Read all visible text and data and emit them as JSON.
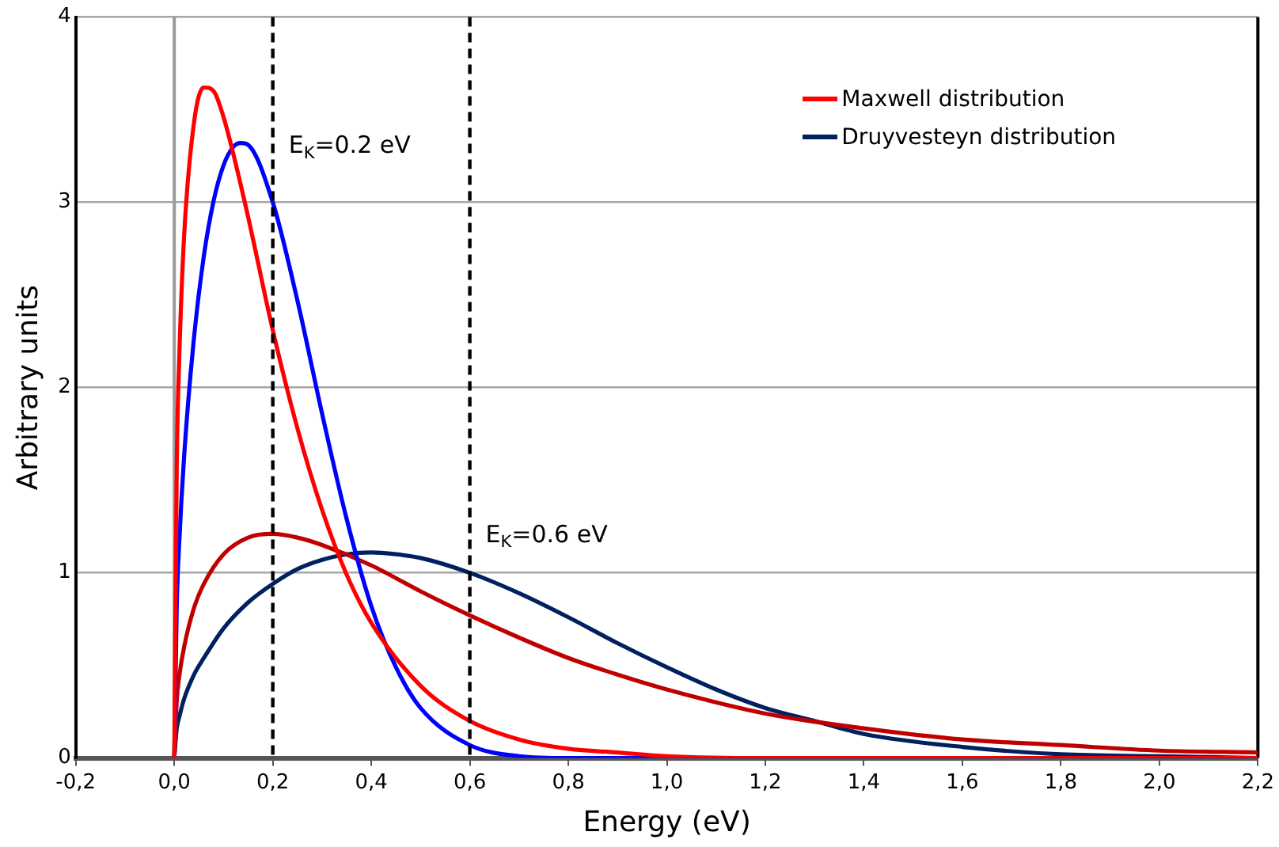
{
  "chart_data": {
    "type": "line",
    "xlabel": "Energy (eV)",
    "ylabel": "Arbitrary units",
    "xlim": [
      -0.2,
      2.2
    ],
    "xticks": [
      {
        "value": -0.2,
        "label": "-0,2"
      },
      {
        "value": 0,
        "label": "0,0"
      },
      {
        "value": 0.2,
        "label": "0,2"
      },
      {
        "value": 0.4,
        "label": "0,4"
      },
      {
        "value": 0.6,
        "label": "0,6"
      },
      {
        "value": 0.8,
        "label": "0,8"
      },
      {
        "value": 1,
        "label": "1,0"
      },
      {
        "value": 1.2,
        "label": "1,2"
      },
      {
        "value": 1.4,
        "label": "1,4"
      },
      {
        "value": 1.6,
        "label": "1,6"
      },
      {
        "value": 1.8,
        "label": "1,8"
      },
      {
        "value": 2,
        "label": "2,0"
      },
      {
        "value": 2.2,
        "label": "2,2"
      }
    ],
    "ylim": [
      0,
      4
    ],
    "yticks": [
      0,
      1,
      2,
      3,
      4
    ],
    "grid": "y",
    "legend": "top right",
    "marker": "none",
    "line_style": "solid",
    "series": [
      {
        "name": "Maxwell distribution",
        "color": "#ff0000",
        "x": [
          0,
          0.005,
          0.01,
          0.02,
          0.04,
          0.06,
          0.08,
          0.1,
          0.12,
          0.15,
          0.2,
          0.25,
          0.3,
          0.35,
          0.4,
          0.5,
          0.6,
          0.7,
          0.8,
          0.9,
          1.0,
          1.2,
          1.4,
          1.6,
          2.2
        ],
        "values": [
          0,
          1.58,
          2.15,
          2.82,
          3.43,
          3.62,
          3.6,
          3.46,
          3.26,
          2.92,
          2.31,
          1.78,
          1.34,
          0.99,
          0.73,
          0.39,
          0.2,
          0.1,
          0.05,
          0.03,
          0.01,
          0,
          0,
          0,
          0
        ]
      },
      {
        "color": "#0000ff",
        "x": [
          0,
          0.005,
          0.01,
          0.02,
          0.04,
          0.06,
          0.08,
          0.1,
          0.12,
          0.135,
          0.15,
          0.2,
          0.25,
          0.3,
          0.35,
          0.4,
          0.45,
          0.5,
          0.6,
          0.7,
          0.8,
          1.0,
          2.2
        ],
        "values": [
          0,
          0.82,
          1.16,
          1.63,
          2.27,
          2.71,
          3.01,
          3.2,
          3.3,
          3.32,
          3.31,
          3.0,
          2.47,
          1.86,
          1.29,
          0.82,
          0.49,
          0.27,
          0.07,
          0.01,
          0,
          0,
          0
        ]
      },
      {
        "color": "#c00000",
        "x": [
          0,
          0.005,
          0.01,
          0.02,
          0.04,
          0.06,
          0.1,
          0.15,
          0.2,
          0.25,
          0.3,
          0.4,
          0.5,
          0.6,
          0.7,
          0.8,
          0.9,
          1.0,
          1.2,
          1.4,
          1.6,
          1.8,
          2.0,
          2.2
        ],
        "values": [
          0,
          0.31,
          0.44,
          0.6,
          0.81,
          0.94,
          1.1,
          1.19,
          1.21,
          1.19,
          1.15,
          1.04,
          0.9,
          0.77,
          0.65,
          0.54,
          0.45,
          0.37,
          0.24,
          0.16,
          0.1,
          0.07,
          0.04,
          0.03
        ]
      },
      {
        "name": "Druyvesteyn distribution",
        "color": "#002060",
        "x": [
          0,
          0.005,
          0.01,
          0.02,
          0.04,
          0.06,
          0.1,
          0.15,
          0.2,
          0.25,
          0.3,
          0.35,
          0.4,
          0.45,
          0.5,
          0.6,
          0.7,
          0.8,
          0.9,
          1.0,
          1.1,
          1.2,
          1.3,
          1.4,
          1.6,
          1.8,
          2.0,
          2.2
        ],
        "values": [
          0,
          0.16,
          0.22,
          0.32,
          0.45,
          0.54,
          0.7,
          0.84,
          0.94,
          1.02,
          1.07,
          1.1,
          1.11,
          1.1,
          1.08,
          1.0,
          0.89,
          0.76,
          0.62,
          0.49,
          0.37,
          0.27,
          0.2,
          0.13,
          0.06,
          0.02,
          0.01,
          0
        ]
      }
    ],
    "ref_lines": [
      {
        "axis": "x",
        "value": 0.2,
        "color": "#000000",
        "line_style": "dashed"
      },
      {
        "axis": "x",
        "value": 0.6,
        "color": "#000000",
        "line_style": "dashed"
      }
    ],
    "annotations": [
      {
        "text": "E$_{K}$=0.2 eV",
        "x": 0.2,
        "y": 3.3
      },
      {
        "text": "E$_{K}$=0.6 eV",
        "x": 0.6,
        "y": 1.2
      }
    ]
  }
}
